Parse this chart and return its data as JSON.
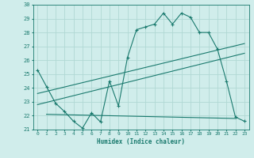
{
  "xlabel": "Humidex (Indice chaleur)",
  "color": "#1a7a6e",
  "bg_color": "#d0edeb",
  "grid_color": "#b0d8d4",
  "xlim": [
    -0.5,
    23.5
  ],
  "ylim": [
    21,
    30
  ],
  "yticks": [
    21,
    22,
    23,
    24,
    25,
    26,
    27,
    28,
    29,
    30
  ],
  "xticks": [
    0,
    1,
    2,
    3,
    4,
    5,
    6,
    7,
    8,
    9,
    10,
    11,
    12,
    13,
    14,
    15,
    16,
    17,
    18,
    19,
    20,
    21,
    22,
    23
  ],
  "line1_x": [
    0,
    1,
    2,
    3,
    4,
    5,
    6,
    7,
    8,
    9,
    10,
    11,
    12,
    13,
    14,
    15,
    16,
    17,
    18,
    19,
    20,
    21,
    22,
    23
  ],
  "line1_y": [
    25.3,
    24.1,
    22.9,
    22.3,
    21.6,
    21.1,
    22.2,
    21.55,
    24.5,
    22.7,
    26.2,
    28.2,
    28.4,
    28.6,
    29.4,
    28.6,
    29.4,
    29.1,
    28.0,
    28.0,
    26.8,
    24.5,
    21.9,
    21.6
  ],
  "line2_x": [
    0,
    23
  ],
  "line2_y": [
    23.6,
    27.2
  ],
  "line3_x": [
    0,
    23
  ],
  "line3_y": [
    22.8,
    26.5
  ],
  "line4_x": [
    1,
    22
  ],
  "line4_y": [
    22.1,
    21.8
  ]
}
